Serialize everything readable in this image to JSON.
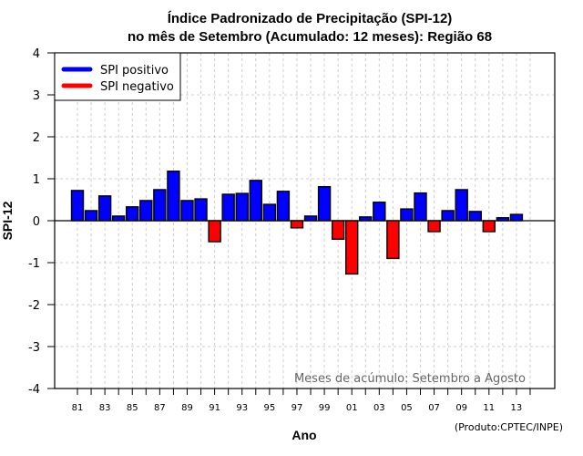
{
  "chart_data": {
    "type": "bar",
    "title": "Índice Padronizado de Precipitação (SPI-12)",
    "subtitle": "no mês de Setembro (Acumulado: 12 meses): Região 68",
    "xlabel": "Ano",
    "ylabel": "SPI-12",
    "ylim": [
      -4,
      4
    ],
    "yticks": [
      "4",
      "3",
      "2",
      "1",
      "0",
      "-1",
      "-2",
      "-3",
      "-4"
    ],
    "ytick_values": [
      4,
      3,
      2,
      1,
      0,
      -1,
      -2,
      -3,
      -4
    ],
    "grid": true,
    "categories": [
      "81",
      "82",
      "83",
      "84",
      "85",
      "86",
      "87",
      "88",
      "89",
      "90",
      "91",
      "92",
      "93",
      "94",
      "95",
      "96",
      "97",
      "98",
      "99",
      "00",
      "01",
      "02",
      "03",
      "04",
      "05",
      "06",
      "07",
      "08",
      "09",
      "10",
      "11",
      "12",
      "13"
    ],
    "xtick_labels": [
      "81",
      "83",
      "85",
      "87",
      "89",
      "91",
      "93",
      "95",
      "97",
      "99",
      "01",
      "03",
      "05",
      "07",
      "09",
      "11",
      "13"
    ],
    "values": [
      0.72,
      0.24,
      0.59,
      0.11,
      0.33,
      0.48,
      0.74,
      1.18,
      0.48,
      0.52,
      -0.5,
      0.63,
      0.65,
      0.96,
      0.39,
      0.7,
      -0.17,
      0.11,
      0.81,
      -0.44,
      -1.27,
      0.09,
      0.44,
      -0.9,
      0.28,
      0.66,
      -0.26,
      0.24,
      0.74,
      0.22,
      -0.26,
      0.07,
      0.15
    ],
    "legend": {
      "placement": "top-left",
      "entries": [
        {
          "label": "SPI positivo",
          "color": "#0000ff"
        },
        {
          "label": "SPI negativo",
          "color": "#ff0000"
        }
      ]
    },
    "annotation": "Meses de acúmulo: Setembro a Agosto",
    "credit": "(Produto:CPTEC/INPE)",
    "colors": {
      "positive": "#0000ff",
      "negative": "#ff0000",
      "grid": "#cccccc"
    }
  }
}
